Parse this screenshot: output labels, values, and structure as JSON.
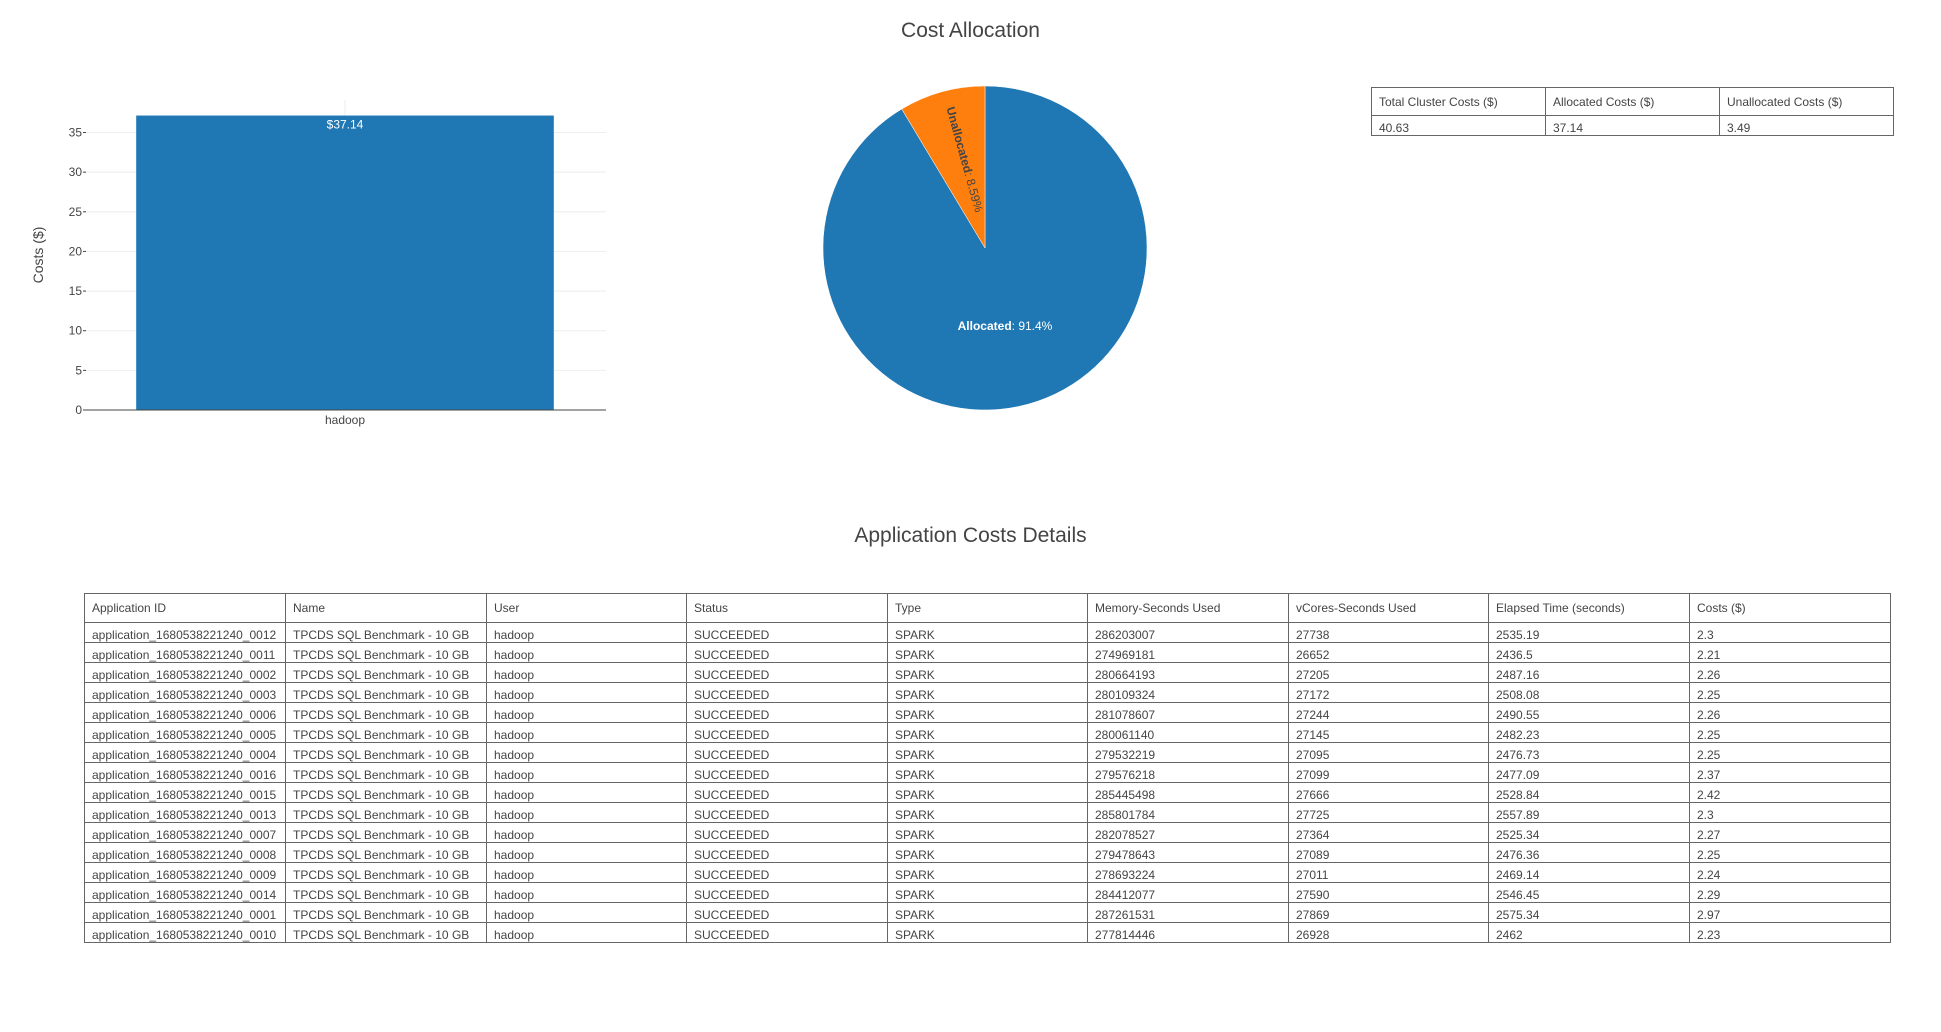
{
  "cost_allocation": {
    "title": "Cost Allocation",
    "summary_table": {
      "headers": [
        "Total Cluster Costs ($)",
        "Allocated Costs ($)",
        "Unallocated Costs ($)"
      ],
      "values": [
        "40.63",
        "37.14",
        "3.49"
      ]
    }
  },
  "chart_data": [
    {
      "type": "bar",
      "categories": [
        "hadoop"
      ],
      "values": [
        37.14
      ],
      "data_labels": [
        "$37.14"
      ],
      "xlabel": "",
      "ylabel": "Costs ($)",
      "ylim": [
        0,
        39.1
      ],
      "yticks": [
        0,
        5,
        10,
        15,
        20,
        25,
        30,
        35
      ],
      "grid": true,
      "color": "#1f77b4"
    },
    {
      "type": "pie",
      "labels": [
        "Allocated",
        "Unallocated"
      ],
      "values": [
        91.4,
        8.59
      ],
      "value_labels": [
        "91.4%",
        "8.59%"
      ],
      "colors": [
        "#1f77b4",
        "#ff7f0e"
      ]
    }
  ],
  "app_details": {
    "title": "Application Costs Details",
    "headers": [
      "Application ID",
      "Name",
      "User",
      "Status",
      "Type",
      "Memory-Seconds Used",
      "vCores-Seconds Used",
      "Elapsed Time (seconds)",
      "Costs ($)"
    ],
    "rows": [
      [
        "application_1680538221240_0012",
        "TPCDS SQL Benchmark - 10 GB",
        "hadoop",
        "SUCCEEDED",
        "SPARK",
        "286203007",
        "27738",
        "2535.19",
        "2.3"
      ],
      [
        "application_1680538221240_0011",
        "TPCDS SQL Benchmark - 10 GB",
        "hadoop",
        "SUCCEEDED",
        "SPARK",
        "274969181",
        "26652",
        "2436.5",
        "2.21"
      ],
      [
        "application_1680538221240_0002",
        "TPCDS SQL Benchmark - 10 GB",
        "hadoop",
        "SUCCEEDED",
        "SPARK",
        "280664193",
        "27205",
        "2487.16",
        "2.26"
      ],
      [
        "application_1680538221240_0003",
        "TPCDS SQL Benchmark - 10 GB",
        "hadoop",
        "SUCCEEDED",
        "SPARK",
        "280109324",
        "27172",
        "2508.08",
        "2.25"
      ],
      [
        "application_1680538221240_0006",
        "TPCDS SQL Benchmark - 10 GB",
        "hadoop",
        "SUCCEEDED",
        "SPARK",
        "281078607",
        "27244",
        "2490.55",
        "2.26"
      ],
      [
        "application_1680538221240_0005",
        "TPCDS SQL Benchmark - 10 GB",
        "hadoop",
        "SUCCEEDED",
        "SPARK",
        "280061140",
        "27145",
        "2482.23",
        "2.25"
      ],
      [
        "application_1680538221240_0004",
        "TPCDS SQL Benchmark - 10 GB",
        "hadoop",
        "SUCCEEDED",
        "SPARK",
        "279532219",
        "27095",
        "2476.73",
        "2.25"
      ],
      [
        "application_1680538221240_0016",
        "TPCDS SQL Benchmark - 10 GB",
        "hadoop",
        "SUCCEEDED",
        "SPARK",
        "279576218",
        "27099",
        "2477.09",
        "2.37"
      ],
      [
        "application_1680538221240_0015",
        "TPCDS SQL Benchmark - 10 GB",
        "hadoop",
        "SUCCEEDED",
        "SPARK",
        "285445498",
        "27666",
        "2528.84",
        "2.42"
      ],
      [
        "application_1680538221240_0013",
        "TPCDS SQL Benchmark - 10 GB",
        "hadoop",
        "SUCCEEDED",
        "SPARK",
        "285801784",
        "27725",
        "2557.89",
        "2.3"
      ],
      [
        "application_1680538221240_0007",
        "TPCDS SQL Benchmark - 10 GB",
        "hadoop",
        "SUCCEEDED",
        "SPARK",
        "282078527",
        "27364",
        "2525.34",
        "2.27"
      ],
      [
        "application_1680538221240_0008",
        "TPCDS SQL Benchmark - 10 GB",
        "hadoop",
        "SUCCEEDED",
        "SPARK",
        "279478643",
        "27089",
        "2476.36",
        "2.25"
      ],
      [
        "application_1680538221240_0009",
        "TPCDS SQL Benchmark - 10 GB",
        "hadoop",
        "SUCCEEDED",
        "SPARK",
        "278693224",
        "27011",
        "2469.14",
        "2.24"
      ],
      [
        "application_1680538221240_0014",
        "TPCDS SQL Benchmark - 10 GB",
        "hadoop",
        "SUCCEEDED",
        "SPARK",
        "284412077",
        "27590",
        "2546.45",
        "2.29"
      ],
      [
        "application_1680538221240_0001",
        "TPCDS SQL Benchmark - 10 GB",
        "hadoop",
        "SUCCEEDED",
        "SPARK",
        "287261531",
        "27869",
        "2575.34",
        "2.97"
      ],
      [
        "application_1680538221240_0010",
        "TPCDS SQL Benchmark - 10 GB",
        "hadoop",
        "SUCCEEDED",
        "SPARK",
        "277814446",
        "26928",
        "2462",
        "2.23"
      ]
    ]
  }
}
